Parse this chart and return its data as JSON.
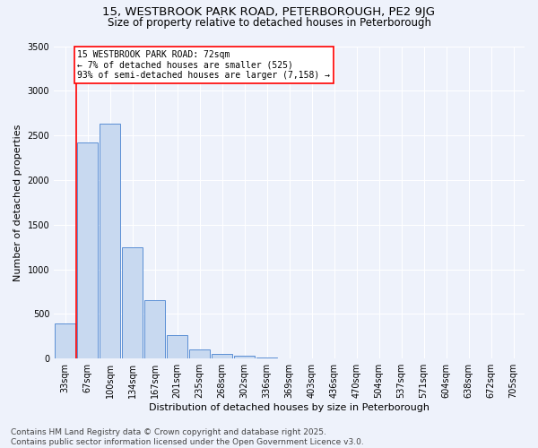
{
  "title_line1": "15, WESTBROOK PARK ROAD, PETERBOROUGH, PE2 9JG",
  "title_line2": "Size of property relative to detached houses in Peterborough",
  "xlabel": "Distribution of detached houses by size in Peterborough",
  "ylabel": "Number of detached properties",
  "bar_labels": [
    "33sqm",
    "67sqm",
    "100sqm",
    "134sqm",
    "167sqm",
    "201sqm",
    "235sqm",
    "268sqm",
    "302sqm",
    "336sqm",
    "369sqm",
    "403sqm",
    "436sqm",
    "470sqm",
    "504sqm",
    "537sqm",
    "571sqm",
    "604sqm",
    "638sqm",
    "672sqm",
    "705sqm"
  ],
  "bar_values": [
    390,
    2420,
    2630,
    1250,
    650,
    260,
    105,
    55,
    30,
    15,
    5,
    2,
    0,
    0,
    0,
    0,
    0,
    0,
    0,
    0,
    0
  ],
  "bar_color": "#c8d9f0",
  "bar_edge_color": "#5b8fd4",
  "bg_color": "#eef2fb",
  "grid_color": "#ffffff",
  "vline_x_index": 1,
  "annotation_text": "15 WESTBROOK PARK ROAD: 72sqm\n← 7% of detached houses are smaller (525)\n93% of semi-detached houses are larger (7,158) →",
  "ylim": [
    0,
    3500
  ],
  "yticks": [
    0,
    500,
    1000,
    1500,
    2000,
    2500,
    3000,
    3500
  ],
  "footer": "Contains HM Land Registry data © Crown copyright and database right 2025.\nContains public sector information licensed under the Open Government Licence v3.0.",
  "title_fontsize": 9.5,
  "subtitle_fontsize": 8.5,
  "axis_fontsize": 8,
  "tick_fontsize": 7,
  "annot_fontsize": 7,
  "footer_fontsize": 6.5
}
